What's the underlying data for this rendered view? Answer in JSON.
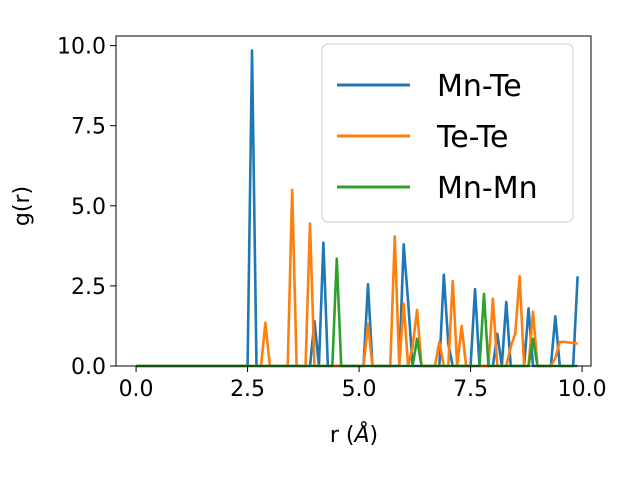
{
  "chart_data": {
    "type": "line",
    "xlabel": "r (",
    "xlabel_symbol": "Å",
    "xlabel_close": ")",
    "ylabel": "g(r)",
    "xlim": [
      -0.45,
      10.2
    ],
    "ylim": [
      0,
      10.3
    ],
    "xticks": [
      0.0,
      2.5,
      5.0,
      7.5,
      10.0
    ],
    "xtick_labels": [
      "0.0",
      "2.5",
      "5.0",
      "7.5",
      "10.0"
    ],
    "yticks": [
      0.0,
      2.5,
      5.0,
      7.5,
      10.0
    ],
    "ytick_labels": [
      "0.0",
      "2.5",
      "5.0",
      "7.5",
      "10.0"
    ],
    "grid": false,
    "legend_position": "top-right",
    "series": [
      {
        "name": "Mn-Te",
        "color": "#1f77b4",
        "x": [
          0.0,
          2.5,
          2.6,
          2.7,
          3.9,
          4.0,
          4.1,
          4.2,
          4.3,
          5.1,
          5.2,
          5.3,
          5.9,
          6.0,
          6.1,
          6.2,
          6.8,
          6.9,
          7.0,
          7.1,
          7.5,
          7.6,
          7.7,
          8.0,
          8.1,
          8.2,
          8.3,
          8.4,
          8.7,
          8.8,
          8.9,
          9.3,
          9.4,
          9.5,
          9.8,
          9.9
        ],
        "y": [
          0,
          0,
          9.85,
          0,
          0,
          1.4,
          0,
          3.85,
          0,
          0,
          2.55,
          0,
          0,
          3.8,
          2.0,
          0,
          0,
          2.85,
          0.7,
          0,
          0,
          2.4,
          0,
          0,
          1.0,
          0,
          2.0,
          0,
          0,
          1.8,
          0,
          0,
          1.55,
          0,
          0,
          2.8
        ]
      },
      {
        "name": "Te-Te",
        "color": "#ff7f0e",
        "x": [
          0.0,
          2.8,
          2.9,
          3.0,
          3.4,
          3.5,
          3.6,
          3.8,
          3.9,
          4.0,
          4.5,
          5.1,
          5.2,
          5.3,
          5.7,
          5.8,
          5.9,
          6.0,
          6.1,
          6.2,
          6.3,
          6.4,
          6.7,
          6.8,
          6.9,
          7.0,
          7.1,
          7.2,
          7.3,
          7.4,
          7.5,
          7.9,
          8.0,
          8.1,
          8.2,
          8.3,
          8.4,
          8.5,
          8.6,
          8.7,
          8.8,
          8.9,
          9.0,
          9.1,
          9.2,
          9.3,
          9.4,
          9.5,
          9.6,
          9.9
        ],
        "y": [
          0,
          0,
          1.35,
          0,
          0,
          5.5,
          0,
          0,
          4.45,
          0,
          0,
          0,
          1.3,
          0,
          0,
          4.05,
          0,
          1.95,
          0,
          0.6,
          1.75,
          0,
          0,
          0.75,
          0,
          0,
          2.65,
          0,
          1.25,
          0,
          0,
          0,
          2.1,
          0,
          0,
          0,
          0.6,
          1.0,
          2.8,
          0,
          0,
          1.7,
          0,
          0,
          0,
          0,
          0.25,
          0.75,
          0.75,
          0.7
        ]
      },
      {
        "name": "Mn-Mn",
        "color": "#2ca02c",
        "x": [
          0.0,
          4.4,
          4.5,
          4.6,
          6.2,
          6.3,
          6.4,
          7.7,
          7.8,
          7.9,
          8.8,
          8.9,
          9.0,
          9.9
        ],
        "y": [
          0,
          0,
          3.35,
          0,
          0,
          0.85,
          0,
          0,
          2.25,
          0,
          0,
          0.85,
          0,
          0
        ]
      }
    ]
  }
}
